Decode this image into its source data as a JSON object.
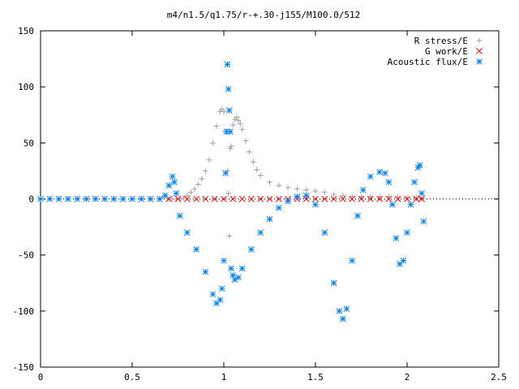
{
  "chart_data": {
    "type": "scatter",
    "title": "m4/n1.5/q1.75/r-+.30-j155/M100.0/512",
    "xlabel": "",
    "ylabel": "",
    "xlim": [
      0,
      2.5
    ],
    "ylim": [
      -150,
      150
    ],
    "x_ticks": [
      "0",
      "0.5",
      "1",
      "1.5",
      "2",
      "2.5"
    ],
    "y_ticks": [
      "150",
      "100",
      "50",
      "0",
      "-50",
      "-100",
      "-150"
    ],
    "grid": false,
    "legend_position": "top-right",
    "series": [
      {
        "name": "R stress/E",
        "marker": "plus",
        "color": "#a0a0a0",
        "points": [
          [
            0.0,
            0
          ],
          [
            0.1,
            0
          ],
          [
            0.2,
            0
          ],
          [
            0.3,
            0
          ],
          [
            0.4,
            0
          ],
          [
            0.5,
            0
          ],
          [
            0.6,
            0
          ],
          [
            0.65,
            0
          ],
          [
            0.7,
            0
          ],
          [
            0.72,
            0
          ],
          [
            0.74,
            0
          ],
          [
            0.76,
            0
          ],
          [
            0.78,
            1
          ],
          [
            0.8,
            3
          ],
          [
            0.82,
            6
          ],
          [
            0.84,
            9
          ],
          [
            0.86,
            13
          ],
          [
            0.88,
            18
          ],
          [
            0.9,
            25
          ],
          [
            0.92,
            35
          ],
          [
            0.94,
            50
          ],
          [
            0.96,
            65
          ],
          [
            0.98,
            78
          ],
          [
            0.99,
            80
          ],
          [
            1.0,
            78
          ],
          [
            1.01,
            60
          ],
          [
            1.02,
            25
          ],
          [
            1.025,
            5
          ],
          [
            1.03,
            -33
          ],
          [
            1.035,
            45
          ],
          [
            1.04,
            47
          ],
          [
            1.05,
            66
          ],
          [
            1.06,
            71
          ],
          [
            1.07,
            73
          ],
          [
            1.08,
            70
          ],
          [
            1.09,
            67
          ],
          [
            1.1,
            62
          ],
          [
            1.12,
            52
          ],
          [
            1.14,
            42
          ],
          [
            1.16,
            33
          ],
          [
            1.18,
            26
          ],
          [
            1.2,
            21
          ],
          [
            1.25,
            15
          ],
          [
            1.3,
            12
          ],
          [
            1.35,
            10
          ],
          [
            1.4,
            9
          ],
          [
            1.45,
            8
          ],
          [
            1.5,
            7
          ],
          [
            1.55,
            6
          ],
          [
            1.6,
            4
          ],
          [
            1.65,
            3
          ],
          [
            1.7,
            2
          ],
          [
            1.75,
            2
          ],
          [
            1.8,
            2
          ],
          [
            1.85,
            2
          ],
          [
            1.9,
            2
          ],
          [
            1.95,
            1
          ],
          [
            2.0,
            1
          ],
          [
            2.05,
            1
          ],
          [
            2.08,
            1
          ]
        ]
      },
      {
        "name": "G work/E",
        "marker": "cross",
        "color": "#ff0000",
        "points": [
          [
            0.7,
            0
          ],
          [
            0.75,
            0
          ],
          [
            0.8,
            0
          ],
          [
            0.85,
            0
          ],
          [
            0.9,
            0
          ],
          [
            0.95,
            0
          ],
          [
            1.0,
            0
          ],
          [
            1.05,
            0
          ],
          [
            1.1,
            0
          ],
          [
            1.15,
            0
          ],
          [
            1.2,
            0
          ],
          [
            1.25,
            0
          ],
          [
            1.3,
            0
          ],
          [
            1.35,
            0
          ],
          [
            1.4,
            0
          ],
          [
            1.45,
            0
          ],
          [
            1.5,
            0
          ],
          [
            1.55,
            0
          ],
          [
            1.6,
            0
          ],
          [
            1.65,
            0
          ],
          [
            1.7,
            0
          ],
          [
            1.75,
            0
          ],
          [
            1.8,
            0
          ],
          [
            1.85,
            0
          ],
          [
            1.9,
            0
          ],
          [
            1.95,
            0
          ],
          [
            2.0,
            0
          ],
          [
            2.05,
            0
          ],
          [
            2.08,
            0
          ]
        ]
      },
      {
        "name": "Acoustic flux/E",
        "marker": "star",
        "color": "#0080ff",
        "points": [
          [
            0.0,
            0
          ],
          [
            0.05,
            0
          ],
          [
            0.1,
            0
          ],
          [
            0.15,
            0
          ],
          [
            0.2,
            0
          ],
          [
            0.25,
            0
          ],
          [
            0.3,
            0
          ],
          [
            0.35,
            0
          ],
          [
            0.4,
            0
          ],
          [
            0.45,
            0
          ],
          [
            0.5,
            0
          ],
          [
            0.55,
            0
          ],
          [
            0.6,
            0
          ],
          [
            0.65,
            0
          ],
          [
            0.68,
            3
          ],
          [
            0.7,
            12
          ],
          [
            0.72,
            20
          ],
          [
            0.73,
            15
          ],
          [
            0.74,
            5
          ],
          [
            0.76,
            -15
          ],
          [
            0.8,
            -30
          ],
          [
            0.85,
            -45
          ],
          [
            0.9,
            -65
          ],
          [
            0.94,
            -85
          ],
          [
            0.96,
            -93
          ],
          [
            0.98,
            -90
          ],
          [
            0.99,
            -80
          ],
          [
            1.0,
            -55
          ],
          [
            1.01,
            23
          ],
          [
            1.015,
            60
          ],
          [
            1.02,
            120
          ],
          [
            1.025,
            98
          ],
          [
            1.03,
            79
          ],
          [
            1.035,
            60
          ],
          [
            1.04,
            -62
          ],
          [
            1.05,
            -68
          ],
          [
            1.06,
            -72
          ],
          [
            1.08,
            -70
          ],
          [
            1.1,
            -62
          ],
          [
            1.15,
            -45
          ],
          [
            1.2,
            -30
          ],
          [
            1.25,
            -18
          ],
          [
            1.3,
            -8
          ],
          [
            1.35,
            -2
          ],
          [
            1.4,
            2
          ],
          [
            1.45,
            3
          ],
          [
            1.5,
            -5
          ],
          [
            1.55,
            -30
          ],
          [
            1.6,
            -75
          ],
          [
            1.63,
            -100
          ],
          [
            1.65,
            -107
          ],
          [
            1.67,
            -98
          ],
          [
            1.7,
            -55
          ],
          [
            1.73,
            -15
          ],
          [
            1.76,
            8
          ],
          [
            1.8,
            20
          ],
          [
            1.85,
            24
          ],
          [
            1.88,
            23
          ],
          [
            1.9,
            15
          ],
          [
            1.92,
            -5
          ],
          [
            1.94,
            -35
          ],
          [
            1.96,
            -58
          ],
          [
            1.98,
            -55
          ],
          [
            2.0,
            -30
          ],
          [
            2.02,
            -5
          ],
          [
            2.04,
            15
          ],
          [
            2.06,
            28
          ],
          [
            2.07,
            30
          ],
          [
            2.08,
            5
          ],
          [
            2.09,
            -20
          ]
        ]
      }
    ]
  }
}
